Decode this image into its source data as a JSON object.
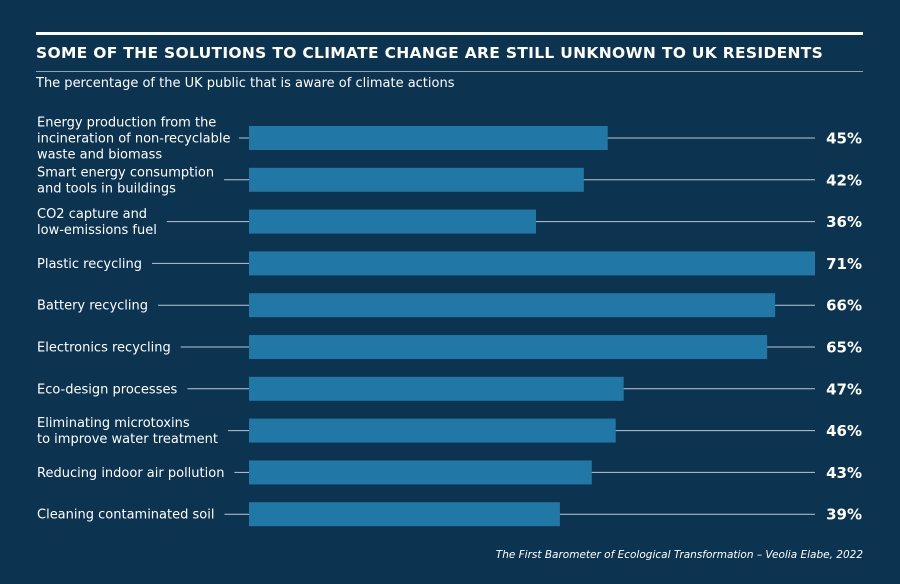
{
  "title": "SOME OF THE SOLUTIONS TO CLIMATE CHANGE ARE STILL UNKNOWN TO UK RESIDENTS",
  "subtitle": "The percentage of the UK public that is aware of climate actions",
  "source": "The First Barometer of Ecological Transformation – Veolia Elabe, 2022",
  "colors": {
    "background": "#0c3350",
    "bar": "#2178a6",
    "line": "#b9c8d4",
    "text": "#ffffff"
  },
  "chart_data": {
    "type": "bar",
    "orientation": "horizontal",
    "title": "SOME OF THE SOLUTIONS TO CLIMATE CHANGE ARE STILL UNKNOWN TO UK RESIDENTS",
    "subtitle": "The percentage of the UK public that is aware of climate actions",
    "unit": "%",
    "xlim": [
      0,
      71
    ],
    "categories": [
      [
        "Energy production from the",
        "incineration of non-recyclable",
        "waste and biomass"
      ],
      [
        "Smart energy consumption",
        "and tools in buildings"
      ],
      [
        "CO2 capture and",
        "low-emissions fuel"
      ],
      [
        "Plastic recycling"
      ],
      [
        "Battery recycling"
      ],
      [
        "Electronics recycling"
      ],
      [
        "Eco-design processes"
      ],
      [
        "Eliminating microtoxins",
        "to improve water treatment"
      ],
      [
        "Reducing indoor air pollution"
      ],
      [
        "Cleaning contaminated soil"
      ]
    ],
    "values": [
      45,
      42,
      36,
      71,
      66,
      65,
      47,
      46,
      43,
      39
    ],
    "value_labels": [
      "45%",
      "42%",
      "36%",
      "71%",
      "66%",
      "65%",
      "47%",
      "46%",
      "43%",
      "39%"
    ]
  }
}
